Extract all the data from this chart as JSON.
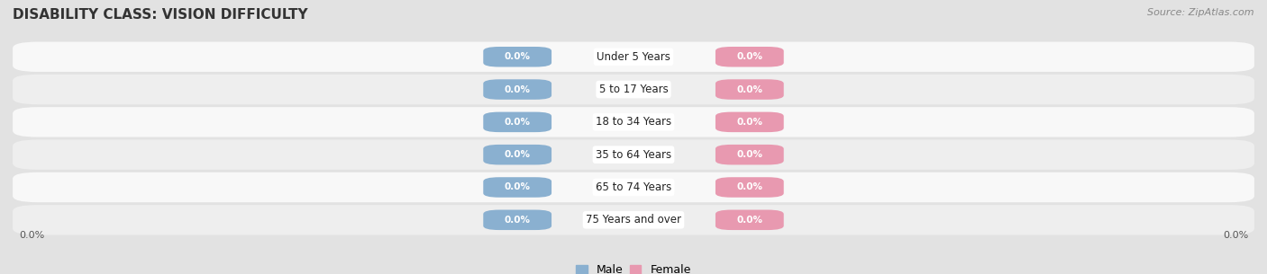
{
  "title": "DISABILITY CLASS: VISION DIFFICULTY",
  "source_text": "Source: ZipAtlas.com",
  "categories": [
    "Under 5 Years",
    "5 to 17 Years",
    "18 to 34 Years",
    "35 to 64 Years",
    "65 to 74 Years",
    "75 Years and over"
  ],
  "male_values": [
    0.0,
    0.0,
    0.0,
    0.0,
    0.0,
    0.0
  ],
  "female_values": [
    0.0,
    0.0,
    0.0,
    0.0,
    0.0,
    0.0
  ],
  "male_color": "#8ab0d0",
  "female_color": "#e899b0",
  "male_label": "Male",
  "female_label": "Female",
  "bg_color": "#e2e2e2",
  "row_color_light": "#f8f8f8",
  "row_color_dark": "#eeeeee",
  "axis_label_left": "0.0%",
  "axis_label_right": "0.0%",
  "fig_width": 14.06,
  "fig_height": 3.05,
  "title_fontsize": 11,
  "source_fontsize": 8
}
